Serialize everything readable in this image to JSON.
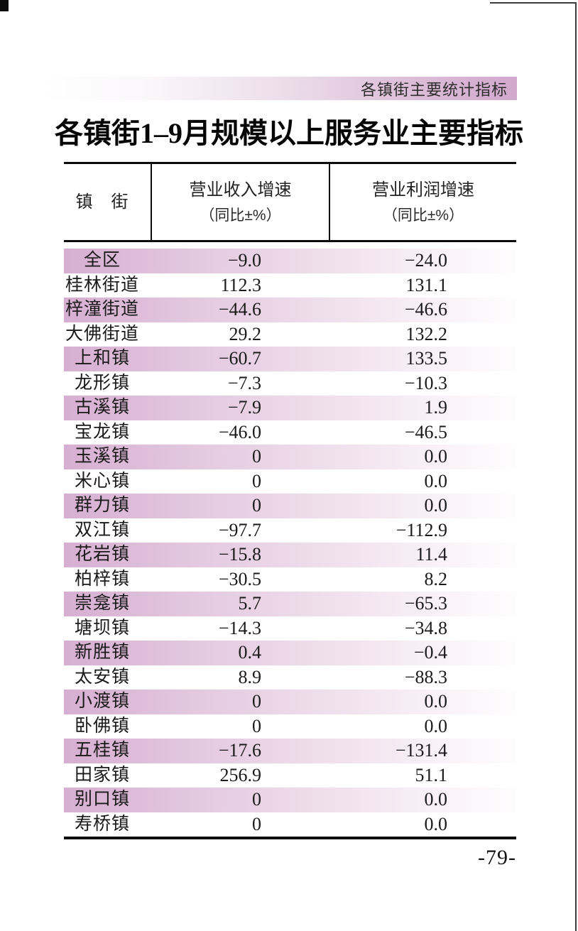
{
  "colors": {
    "row_pink_left": "#d6aed1",
    "bar_pink_right": "#d2a8cd"
  },
  "header_bar": {
    "label": "各镇街主要统计指标"
  },
  "title": "各镇街1–9月规模以上服务业主要指标",
  "page_number": "-79-",
  "table": {
    "columns": [
      {
        "label": "镇　街"
      },
      {
        "label": "营业收入增速",
        "sub": "（同比±%）"
      },
      {
        "label": "营业利润增速",
        "sub": "（同比±%）"
      }
    ],
    "rows": [
      {
        "name": "全区",
        "revenue": "−9.0",
        "profit": "−24.0"
      },
      {
        "name": "桂林街道",
        "revenue": "112.3",
        "profit": "131.1"
      },
      {
        "name": "梓潼街道",
        "revenue": "−44.6",
        "profit": "−46.6"
      },
      {
        "name": "大佛街道",
        "revenue": "29.2",
        "profit": "132.2"
      },
      {
        "name": "上和镇",
        "revenue": "−60.7",
        "profit": "133.5"
      },
      {
        "name": "龙形镇",
        "revenue": "−7.3",
        "profit": "−10.3"
      },
      {
        "name": "古溪镇",
        "revenue": "−7.9",
        "profit": "1.9"
      },
      {
        "name": "宝龙镇",
        "revenue": "−46.0",
        "profit": "−46.5"
      },
      {
        "name": "玉溪镇",
        "revenue": "0",
        "profit": "0.0"
      },
      {
        "name": "米心镇",
        "revenue": "0",
        "profit": "0.0"
      },
      {
        "name": "群力镇",
        "revenue": "0",
        "profit": "0.0"
      },
      {
        "name": "双江镇",
        "revenue": "−97.7",
        "profit": "−112.9"
      },
      {
        "name": "花岩镇",
        "revenue": "−15.8",
        "profit": "11.4"
      },
      {
        "name": "柏梓镇",
        "revenue": "−30.5",
        "profit": "8.2"
      },
      {
        "name": "崇龛镇",
        "revenue": "5.7",
        "profit": "−65.3"
      },
      {
        "name": "塘坝镇",
        "revenue": "−14.3",
        "profit": "−34.8"
      },
      {
        "name": "新胜镇",
        "revenue": "0.4",
        "profit": "−0.4"
      },
      {
        "name": "太安镇",
        "revenue": "8.9",
        "profit": "−88.3"
      },
      {
        "name": "小渡镇",
        "revenue": "0",
        "profit": "0.0"
      },
      {
        "name": "卧佛镇",
        "revenue": "0",
        "profit": "0.0"
      },
      {
        "name": "五桂镇",
        "revenue": "−17.6",
        "profit": "−131.4"
      },
      {
        "name": "田家镇",
        "revenue": "256.9",
        "profit": "51.1"
      },
      {
        "name": "别口镇",
        "revenue": "0",
        "profit": "0.0"
      },
      {
        "name": "寿桥镇",
        "revenue": "0",
        "profit": "0.0"
      }
    ]
  }
}
